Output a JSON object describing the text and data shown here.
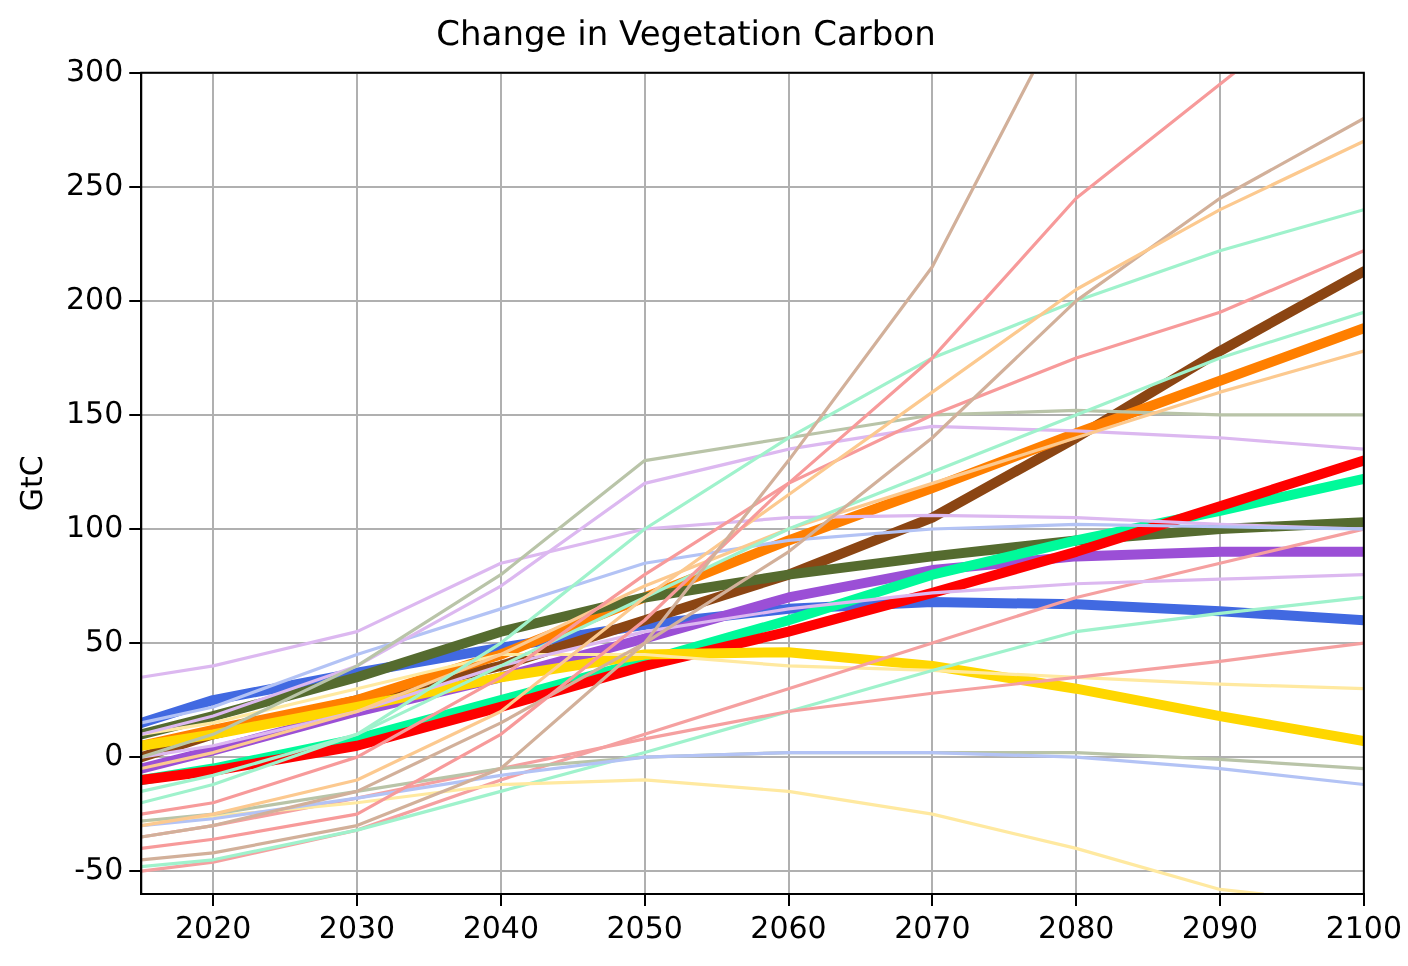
{
  "chart_data": {
    "type": "line",
    "title": "Change in Vegetation Carbon",
    "ylabel": "GtC",
    "x": [
      2015,
      2020,
      2030,
      2040,
      2050,
      2060,
      2070,
      2080,
      2090,
      2100
    ],
    "xlim": [
      2015,
      2100
    ],
    "xticks": [
      2020,
      2030,
      2040,
      2050,
      2060,
      2070,
      2080,
      2090,
      2100
    ],
    "ylim": [
      -60,
      300
    ],
    "yticks": [
      -50,
      0,
      50,
      100,
      150,
      200,
      250,
      300
    ],
    "grid": true,
    "legend": false,
    "marker": "none",
    "line_style": "solid",
    "series": [
      {
        "color": "#d2b09a",
        "x": [
          2015,
          2020,
          2030,
          2040,
          2050,
          2060,
          2070,
          2077
        ],
        "values": [
          -45,
          -42,
          -30,
          -5,
          50,
          130,
          215,
          300
        ]
      },
      {
        "color": "#f79a9a",
        "x": [
          2015,
          2020,
          2030,
          2040,
          2050,
          2060,
          2070,
          2080,
          2091
        ],
        "values": [
          -40,
          -36,
          -25,
          10,
          60,
          120,
          175,
          245,
          300
        ]
      },
      {
        "color": "#fcc98f",
        "values": [
          -30,
          -25,
          -10,
          20,
          70,
          115,
          160,
          205,
          240,
          270
        ]
      },
      {
        "color": "#d2b09a",
        "values": [
          -35,
          -30,
          -15,
          15,
          50,
          90,
          140,
          200,
          245,
          280
        ]
      },
      {
        "color": "#9ff2cc",
        "values": [
          -20,
          -12,
          10,
          50,
          100,
          140,
          175,
          200,
          222,
          240
        ]
      },
      {
        "color": "#f79a9a",
        "values": [
          -25,
          -20,
          0,
          35,
          80,
          120,
          150,
          175,
          195,
          222
        ]
      },
      {
        "color": "#9ff2cc",
        "values": [
          -15,
          -8,
          10,
          40,
          70,
          100,
          125,
          150,
          175,
          195
        ]
      },
      {
        "color": "#fcc98f",
        "values": [
          -5,
          2,
          20,
          45,
          75,
          100,
          120,
          140,
          160,
          178
        ]
      },
      {
        "color": "#b9c4a8",
        "values": [
          0,
          10,
          40,
          80,
          130,
          140,
          150,
          152,
          150,
          150
        ]
      },
      {
        "color": "#dcb8f0",
        "values": [
          10,
          18,
          40,
          75,
          120,
          135,
          145,
          143,
          140,
          135
        ]
      },
      {
        "color": "#dcb8f0",
        "values": [
          0,
          5,
          20,
          40,
          55,
          65,
          72,
          76,
          78,
          80
        ]
      },
      {
        "color": "#b3c3f5",
        "values": [
          -30,
          -27,
          -18,
          -8,
          0,
          2,
          2,
          0,
          -5,
          -12
        ]
      },
      {
        "color": "#b9c4a8",
        "values": [
          -28,
          -25,
          -15,
          -5,
          0,
          2,
          2,
          2,
          -1,
          -5
        ]
      },
      {
        "color": "#ffe9a0",
        "x": [
          2015,
          2020,
          2030,
          2040,
          2050,
          2060,
          2070,
          2080,
          2090,
          2093
        ],
        "values": [
          -28,
          -26,
          -20,
          -12,
          -10,
          -15,
          -25,
          -40,
          -58,
          -60
        ]
      },
      {
        "color": "#f5a0a0",
        "values": [
          -35,
          -30,
          -18,
          -5,
          8,
          20,
          28,
          35,
          42,
          50
        ]
      },
      {
        "color": "#b3c3f5",
        "values": [
          15,
          22,
          45,
          65,
          85,
          95,
          100,
          102,
          101,
          100
        ]
      },
      {
        "color": "#dcb8f0",
        "values": [
          35,
          40,
          55,
          85,
          100,
          105,
          106,
          105,
          102,
          100
        ]
      },
      {
        "color": "#9ff2cc",
        "values": [
          -48,
          -45,
          -32,
          -15,
          2,
          20,
          38,
          55,
          63,
          70
        ]
      },
      {
        "color": "#f5a0a0",
        "values": [
          -50,
          -46,
          -32,
          -10,
          10,
          30,
          50,
          70,
          85,
          100
        ]
      },
      {
        "color": "#ffe9a0",
        "values": [
          10,
          15,
          30,
          45,
          45,
          40,
          38,
          35,
          32,
          30
        ]
      },
      {
        "color": "#ffd700",
        "values": [
          5,
          10,
          22,
          35,
          45,
          46,
          40,
          30,
          18,
          7
        ]
      },
      {
        "color": "#ff0000",
        "values": [
          -10,
          -6,
          5,
          22,
          40,
          55,
          72,
          90,
          110,
          130
        ]
      },
      {
        "color": "#00fa9a",
        "values": [
          -10,
          -5,
          8,
          25,
          42,
          60,
          80,
          95,
          108,
          122
        ]
      },
      {
        "color": "#556b2f",
        "values": [
          10,
          18,
          35,
          55,
          70,
          80,
          88,
          95,
          100,
          103
        ]
      },
      {
        "color": "#ff7f00",
        "values": [
          5,
          12,
          25,
          45,
          70,
          95,
          118,
          142,
          165,
          188
        ]
      },
      {
        "color": "#8b4513",
        "values": [
          0,
          10,
          25,
          40,
          60,
          80,
          105,
          140,
          178,
          213
        ]
      },
      {
        "color": "#9b4fd6",
        "values": [
          -5,
          3,
          20,
          35,
          52,
          70,
          82,
          88,
          90,
          90
        ]
      },
      {
        "color": "#4169e1",
        "values": [
          15,
          25,
          37,
          48,
          58,
          65,
          68,
          67,
          64,
          60
        ]
      }
    ]
  }
}
